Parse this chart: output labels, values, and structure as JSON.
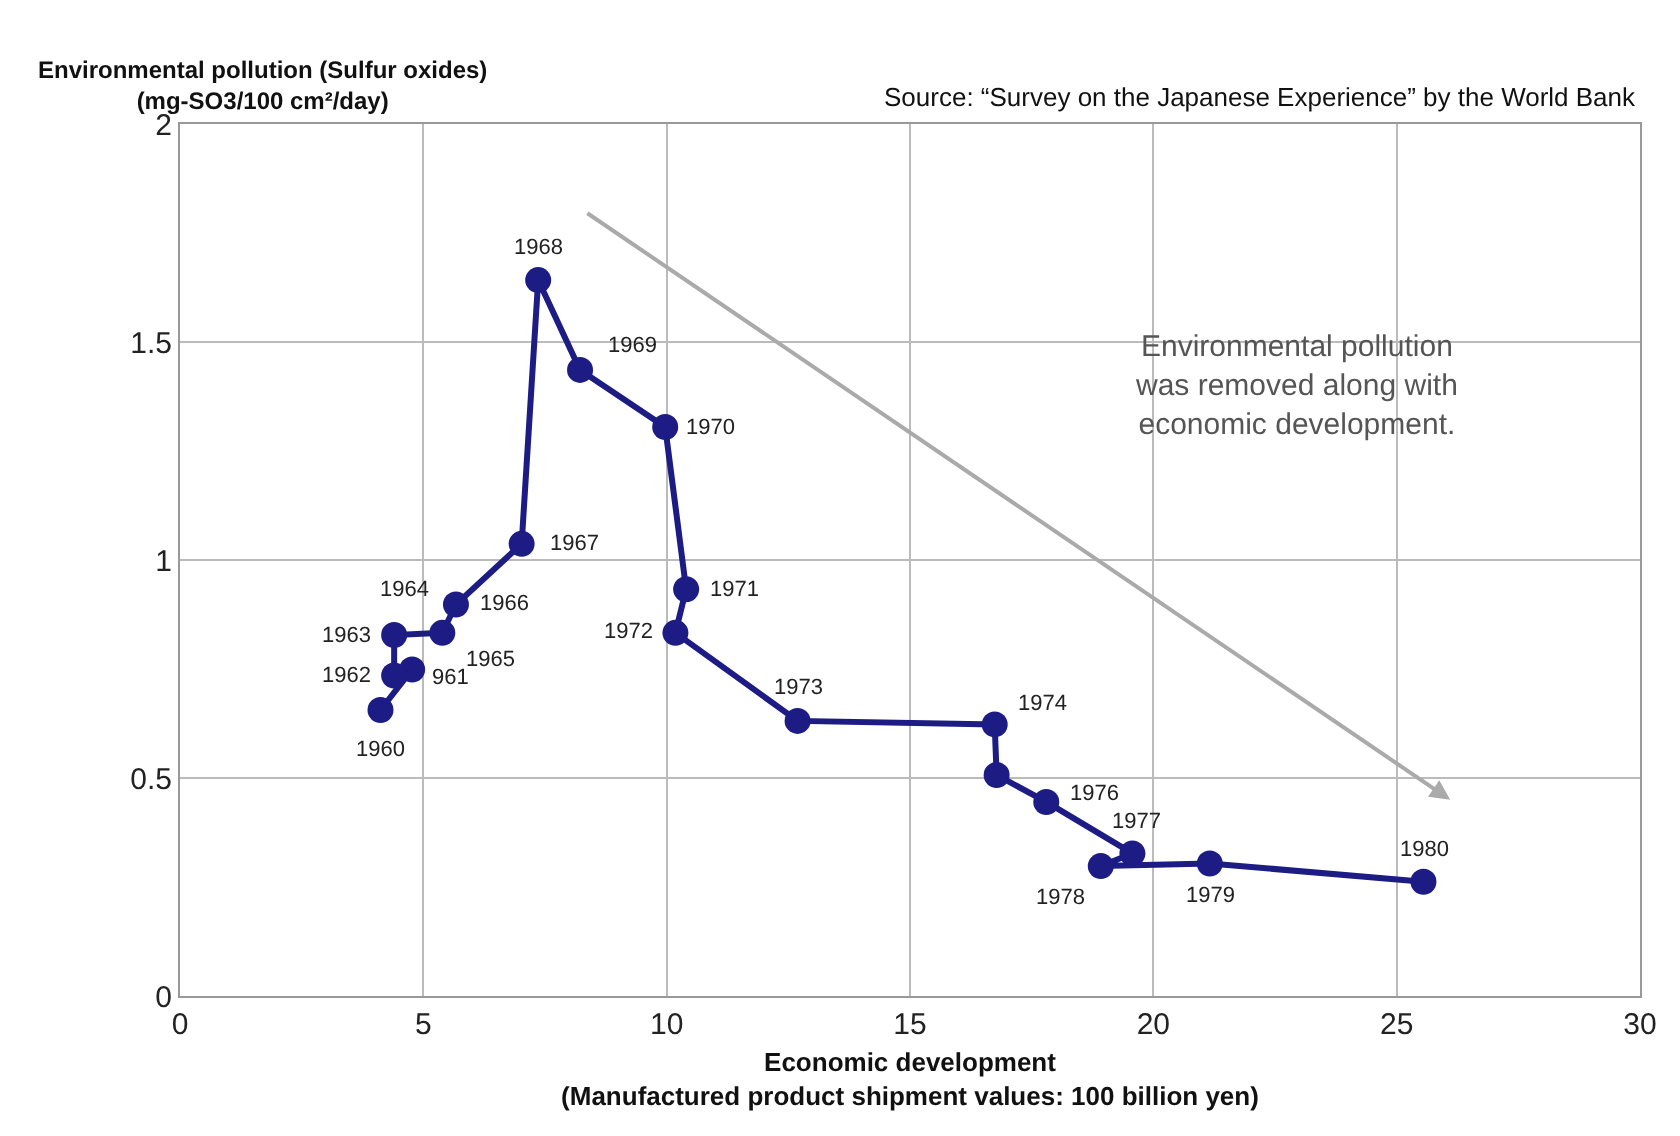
{
  "chart_data": {
    "type": "line",
    "ylabel": "Environmental pollution (Sulfur oxides)\n(mg-SO3/100 cm²/day)",
    "xlabel": "Economic development\n(Manufactured product shipment values: 100 billion yen)",
    "annotations": [
      "Source: “Survey on the Japanese Experience” by the World Bank",
      "Environmental pollution\nwas removed along with\neconomic development.",
      {
        "text": "1960",
        "x": 4.12,
        "y": 0.656
      },
      {
        "text": "961",
        "x": 4.77,
        "y": 0.749
      },
      {
        "text": "1962",
        "x": 4.4,
        "y": 0.735
      },
      {
        "text": "1963",
        "x": 4.4,
        "y": 0.828
      },
      {
        "text": "1964",
        "x": 5.5,
        "y": 0.87
      },
      {
        "text": "1965",
        "x": 5.39,
        "y": 0.833
      },
      {
        "text": "1966",
        "x": 5.67,
        "y": 0.898
      },
      {
        "text": "1967",
        "x": 7.02,
        "y": 1.037
      },
      {
        "text": "1968",
        "x": 7.36,
        "y": 1.642
      },
      {
        "text": "1969",
        "x": 8.22,
        "y": 1.436
      },
      {
        "text": "1970",
        "x": 9.97,
        "y": 1.305
      },
      {
        "text": "1971",
        "x": 10.4,
        "y": 0.933
      },
      {
        "text": "1972",
        "x": 10.18,
        "y": 0.833
      },
      {
        "text": "1973",
        "x": 12.69,
        "y": 0.631
      },
      {
        "text": "1974",
        "x": 16.74,
        "y": 0.623
      },
      {
        "text": "1976",
        "x": 17.8,
        "y": 0.445
      },
      {
        "text": "1977",
        "x": 19.57,
        "y": 0.327
      },
      {
        "text": "1978",
        "x": 18.92,
        "y": 0.298
      },
      {
        "text": "1979",
        "x": 21.16,
        "y": 0.304
      },
      {
        "text": "1980",
        "x": 25.55,
        "y": 0.262
      }
    ],
    "x": [
      4.12,
      4.77,
      4.4,
      4.4,
      null,
      5.39,
      5.67,
      7.02,
      7.36,
      8.22,
      9.97,
      10.4,
      10.18,
      12.69,
      16.74,
      16.78,
      17.8,
      19.57,
      18.92,
      21.16,
      25.55
    ],
    "series": [
      {
        "color": "#1c1c84",
        "values": [
          0.656,
          0.749,
          0.735,
          0.828,
          null,
          0.833,
          0.898,
          1.037,
          1.642,
          1.436,
          1.305,
          0.933,
          0.833,
          0.631,
          0.623,
          0.507,
          0.445,
          0.327,
          0.298,
          0.304,
          0.262
        ]
      }
    ],
    "xlim": [
      0,
      30
    ],
    "xticks": [
      0,
      5,
      10,
      15,
      20,
      25,
      30
    ],
    "ylim": [
      0,
      2
    ],
    "yticks": [
      0,
      0.5,
      1,
      1.5,
      2
    ],
    "grid": true,
    "legend": false,
    "marker": "circle",
    "line_style": "solid"
  }
}
